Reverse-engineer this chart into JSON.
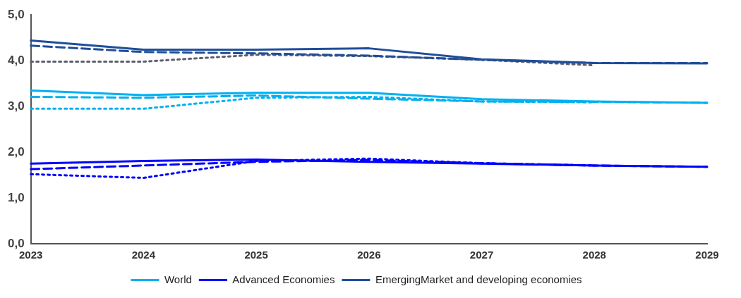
{
  "chart_data": {
    "type": "line",
    "categories": [
      "2023",
      "2024",
      "2025",
      "2026",
      "2027",
      "2028",
      "2029"
    ],
    "series": [
      {
        "name": "World",
        "color": "#00b0f0",
        "line_style": "solid",
        "values": [
          3.35,
          3.25,
          3.3,
          3.3,
          3.16,
          3.11,
          3.08
        ]
      },
      {
        "name": "Advanced Economies",
        "color": "#0000ff",
        "line_style": "solid",
        "values": [
          1.75,
          1.81,
          1.84,
          1.79,
          1.75,
          1.71,
          1.68
        ]
      },
      {
        "name": "EmergingMarket and developing economies",
        "color": "#1f4e9a",
        "line_style": "solid",
        "values": [
          4.44,
          4.24,
          4.24,
          4.27,
          4.03,
          3.95,
          3.94
        ]
      },
      {
        "color": "#00b0f0",
        "line_style": "dashed",
        "values": [
          3.21,
          3.19,
          3.24,
          3.17,
          3.11,
          3.1,
          3.08
        ]
      },
      {
        "color": "#0000ff",
        "line_style": "dashed",
        "values": [
          1.63,
          1.71,
          1.79,
          1.83,
          1.76,
          1.71,
          1.68
        ]
      },
      {
        "color": "#1f4e9a",
        "line_style": "dashed",
        "values": [
          4.33,
          4.19,
          4.16,
          4.11,
          4.02,
          3.95,
          3.95
        ]
      },
      {
        "color": "#00b0f0",
        "line_style": "dotted",
        "values": [
          2.95,
          2.95,
          3.19,
          3.21,
          3.11,
          3.09,
          null
        ]
      },
      {
        "color": "#0000ff",
        "line_style": "dotted",
        "values": [
          1.52,
          1.44,
          1.81,
          1.86,
          1.76,
          1.71,
          null
        ]
      },
      {
        "color": "#5a5f6e",
        "line_style": "dotted",
        "values": [
          3.98,
          3.98,
          4.13,
          4.1,
          4.02,
          3.9,
          null
        ]
      }
    ],
    "ylim": [
      0,
      5
    ],
    "yticks": [
      {
        "value": 0,
        "label": "0,0"
      },
      {
        "value": 1,
        "label": "1,0"
      },
      {
        "value": 2,
        "label": "2,0"
      },
      {
        "value": 3,
        "label": "3,0"
      },
      {
        "value": 4,
        "label": "4,0"
      },
      {
        "value": 5,
        "label": "5,0"
      }
    ],
    "grid": false,
    "legend": "bottom",
    "marker": "none"
  }
}
